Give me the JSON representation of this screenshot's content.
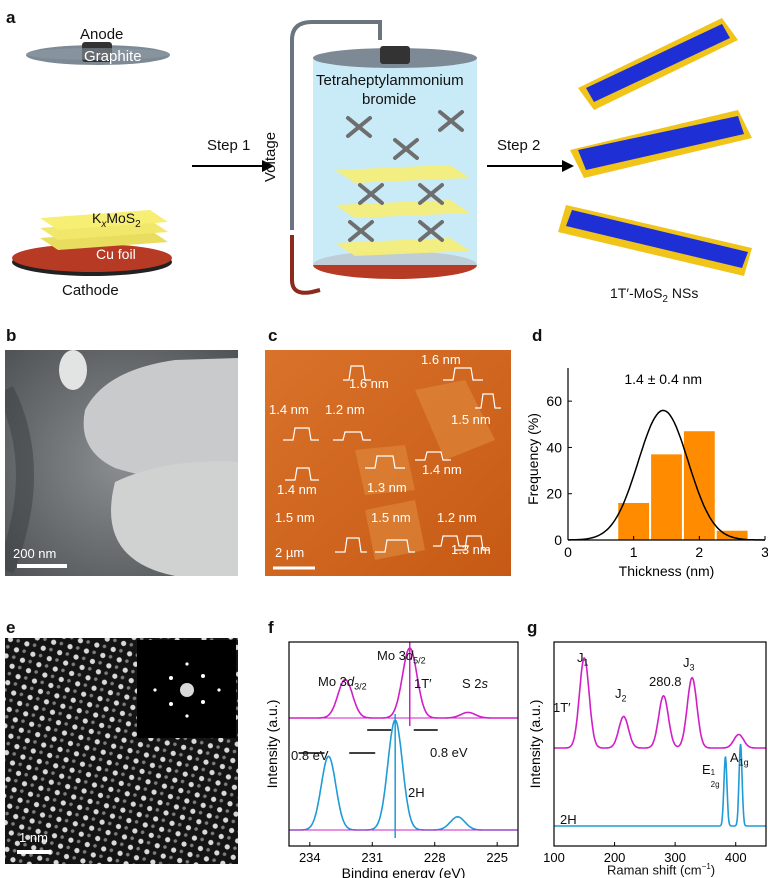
{
  "panel_labels": {
    "a": "a",
    "b": "b",
    "c": "c",
    "d": "d",
    "e": "e",
    "f": "f",
    "g": "g"
  },
  "panel_a": {
    "anode_label": "Anode",
    "graphite_label": "Graphite",
    "kxmos2_label_main": "K",
    "kxmos2_label_sub_x": "x",
    "kxmos2_label_mid": "MoS",
    "kxmos2_label_sub_2": "2",
    "cu_foil_label": "Cu foil",
    "cathode_label": "Cathode",
    "step1_label": "Step 1",
    "voltage_label": "Voltage",
    "electrolyte_label_line1": "Tetraheptylammonium",
    "electrolyte_label_line2": "bromide",
    "step2_label": "Step 2",
    "product_label_main": "1T′-MoS",
    "product_label_sub": "2",
    "product_label_end": " NSs",
    "colors": {
      "mo": "#1f2fd6",
      "s": "#f0c419",
      "cu": "#b73a24",
      "yellow_layer": "#f7ee74",
      "liquid": "#bfe8f6"
    }
  },
  "panel_b": {
    "scale_bar": "200 nm"
  },
  "panel_c": {
    "scale_bar": "2 µm",
    "thickness_labels": [
      "1.6 nm",
      "1.6 nm",
      "1.4 nm",
      "1.2 nm",
      "1.5 nm",
      "1.4 nm",
      "1.3 nm",
      "1.4 nm",
      "1.5 nm",
      "1.5 nm",
      "1.2 nm",
      "1.3 nm"
    ]
  },
  "panel_d": {
    "chart_data": {
      "type": "bar",
      "title": "",
      "annotation": "1.4 ± 0.4 nm",
      "xlabel": "Thickness (nm)",
      "ylabel": "Frequency (%)",
      "bin_centers": [
        1.0,
        1.5,
        2.0,
        2.5
      ],
      "values": [
        16,
        37,
        47,
        4
      ],
      "bin_width": 0.5,
      "fit": {
        "type": "gaussian",
        "mean": 1.45,
        "sigma": 0.38,
        "peak": 56
      },
      "xlim": [
        0,
        3
      ],
      "ylim": [
        0,
        70
      ],
      "xticks": [
        "0",
        "1",
        "2",
        "3"
      ],
      "yticks": [
        "0",
        "20",
        "40",
        "60"
      ],
      "bar_color": "#ff8c00"
    }
  },
  "panel_e": {
    "scale_bar": "1 nm"
  },
  "panel_f": {
    "chart_data": {
      "type": "line",
      "xlabel": "Binding energy (eV)",
      "ylabel": "Intensity (a.u.)",
      "xlim": [
        235,
        224
      ],
      "xticks": [
        "234",
        "231",
        "228",
        "225"
      ],
      "series": [
        {
          "name": "1T′",
          "peaks": [
            {
              "x": 229.2,
              "h": 1.0
            },
            {
              "x": 232.3,
              "h": 0.55
            },
            {
              "x": 226.4,
              "h": 0.08
            }
          ],
          "color": "#d11fc8"
        },
        {
          "name": "2H",
          "peaks": [
            {
              "x": 229.9,
              "h": 1.0
            },
            {
              "x": 233.1,
              "h": 0.67
            },
            {
              "x": 226.9,
              "h": 0.12
            }
          ],
          "color": "#1f9bd6"
        }
      ],
      "annotations": [
        "Mo 3d5/2",
        "Mo 3d3/2",
        "S 2s",
        "0.8 eV",
        "0.8 eV",
        "1T′",
        "2H"
      ]
    },
    "mo_label_1_main": "Mo 3",
    "mo_label_1_d": "d",
    "mo_label_1_sub": "5/2",
    "mo_label_2_main": "Mo 3",
    "mo_label_2_d": "d",
    "mo_label_2_sub": "3/2",
    "s2s_main": "S 2",
    "s2s_s": "s",
    "shift_left": "0.8 eV",
    "shift_right": "0.8 eV",
    "phase_1t": "1T′",
    "phase_2h": "2H",
    "xlabel": "Binding energy (eV)",
    "ylabel": "Intensity (a.u.)",
    "xticks": [
      "234",
      "231",
      "228",
      "225"
    ]
  },
  "panel_g": {
    "chart_data": {
      "type": "line",
      "xlabel": "Raman shift (cm⁻¹)",
      "ylabel": "Intensity (a.u.)",
      "xlim": [
        100,
        450
      ],
      "xticks": [
        "100",
        "200",
        "300",
        "400"
      ],
      "series": [
        {
          "name": "1T′",
          "peaks": [
            {
              "x": 150,
              "h": 1.0
            },
            {
              "x": 215,
              "h": 0.35
            },
            {
              "x": 280.8,
              "h": 0.58
            },
            {
              "x": 328,
              "h": 0.78
            },
            {
              "x": 405,
              "h": 0.15
            }
          ],
          "color": "#d11fc8"
        },
        {
          "name": "2H",
          "peaks": [
            {
              "x": 383,
              "h": 0.85
            },
            {
              "x": 408,
              "h": 1.0
            }
          ],
          "color": "#1f9bd6"
        }
      ]
    },
    "j1_main": "J",
    "j1_sub": "1",
    "j2_main": "J",
    "j2_sub": "2",
    "j3_main": "J",
    "j3_sub": "3",
    "peak_280": "280.8",
    "e2g_main": "E",
    "e2g_sup": "1",
    "e2g_sub": "2g",
    "a1g_main": "A",
    "a1g_sub": "1g",
    "phase_1t": "1T′",
    "phase_2h": "2H",
    "xlabel_main": "Raman shift (cm",
    "xlabel_sup": "−1",
    "xlabel_end": ")",
    "ylabel": "Intensity (a.u.)",
    "xticks": [
      "100",
      "200",
      "300",
      "400"
    ]
  }
}
